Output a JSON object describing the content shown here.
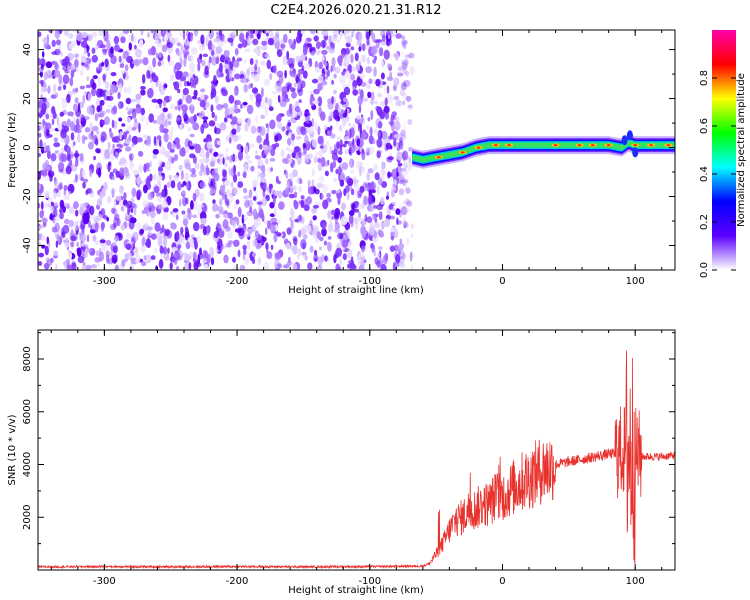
{
  "figure": {
    "title": "C2E4.2026.020.21.31.R12",
    "background": "#ffffff"
  },
  "chart_data": [
    {
      "type": "heatmap",
      "name": "spectrogram",
      "title": "C2E4.2026.020.21.31.R12",
      "xlabel": "Height of straight line (km)",
      "ylabel": "Frequency (Hz)",
      "xlim": [
        -350,
        130
      ],
      "ylim": [
        -50,
        48
      ],
      "x_ticks": [
        -300,
        -200,
        -100,
        0,
        100
      ],
      "x_tick_labels": [
        "-300",
        "-200",
        "-100",
        "0",
        "100"
      ],
      "y_ticks": [
        -40,
        -20,
        0,
        20,
        40
      ],
      "y_tick_labels": [
        "-40",
        "-20",
        "0",
        "20",
        "40"
      ],
      "noise_region_x": [
        -350,
        -68
      ],
      "signal_track": {
        "x": [
          -68,
          -60,
          -50,
          -40,
          -30,
          -20,
          -10,
          0,
          10,
          20,
          40,
          60,
          80,
          90,
          95,
          100,
          110,
          130
        ],
        "freq_hz": [
          -4,
          -5,
          -4,
          -3,
          -2,
          0,
          1,
          1,
          1,
          1,
          1,
          1,
          1,
          0,
          2,
          1,
          1,
          1
        ]
      },
      "colorbar": {
        "label": "Normalized spectral amplitude",
        "range": [
          0.0,
          1.0
        ],
        "ticks": [
          0.0,
          0.2,
          0.4,
          0.6,
          0.8
        ],
        "tick_labels": [
          "0.0",
          "0.2",
          "0.4",
          "0.6",
          "0.8"
        ],
        "colors": [
          "#ffffff",
          "#5a00ff",
          "#0000ff",
          "#00ffff",
          "#00ff00",
          "#ffff00",
          "#ff0000",
          "#ff00aa"
        ]
      }
    },
    {
      "type": "line",
      "name": "snr",
      "xlabel": "Height of straight line (km)",
      "ylabel": "SNR (10 * v/v)",
      "xlim": [
        -350,
        130
      ],
      "ylim": [
        0,
        9100
      ],
      "x_ticks": [
        -300,
        -200,
        -100,
        0,
        100
      ],
      "x_tick_labels": [
        "-300",
        "-200",
        "-100",
        "0",
        "100"
      ],
      "y_ticks": [
        2000,
        4000,
        6000,
        8000
      ],
      "y_tick_labels": [
        "2000",
        "4000",
        "6000",
        "8000"
      ],
      "color": "#e8322e",
      "series": [
        {
          "name": "SNR",
          "x": [
            -350,
            -300,
            -250,
            -200,
            -150,
            -100,
            -60,
            -55,
            -50,
            -45,
            -40,
            -35,
            -30,
            -25,
            -20,
            -15,
            -10,
            -5,
            0,
            10,
            20,
            30,
            40,
            50,
            60,
            70,
            80,
            85,
            90,
            95,
            98,
            100,
            105,
            110,
            120,
            130
          ],
          "y": [
            120,
            130,
            120,
            130,
            120,
            130,
            150,
            250,
            600,
            1000,
            1500,
            1900,
            2000,
            2300,
            2300,
            2500,
            2500,
            2800,
            2800,
            3200,
            3500,
            3800,
            4000,
            4100,
            4200,
            4300,
            4400,
            4400,
            4500,
            4600,
            4500,
            4400,
            4300,
            4300,
            4300,
            4350
          ]
        }
      ]
    }
  ]
}
